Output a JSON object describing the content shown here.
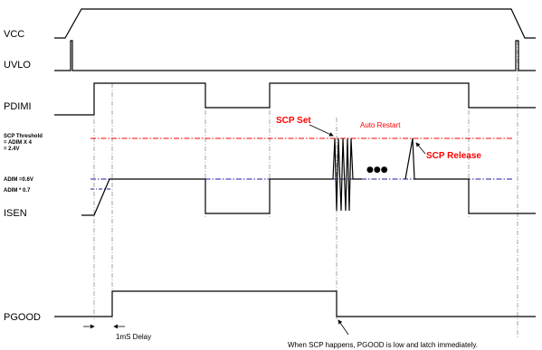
{
  "signals": {
    "vcc": "VCC",
    "uvlo": "UVLO",
    "pdimi": "PDIMI",
    "isen": "ISEN",
    "pgood": "PGOOD"
  },
  "thresholds": {
    "scp_line1": "SCP Threshold",
    "scp_line2": "= ADIM X 4",
    "scp_line3": "= 2.4V",
    "adim": "ADIM =0.6V",
    "adim_07": "ADIM * 0.7"
  },
  "annotations": {
    "scp_set": "SCP Set",
    "auto_restart": "Auto Restart",
    "scp_release": "SCP Release",
    "ellipsis": "●●●",
    "delay": "1mS Delay",
    "note": "When SCP happens, PGOOD is low and latch immediately."
  },
  "colors": {
    "scp_threshold": "#ff0000",
    "adim_line": "#1a1aa0",
    "wave": "#000000",
    "guide": "#808080"
  }
}
